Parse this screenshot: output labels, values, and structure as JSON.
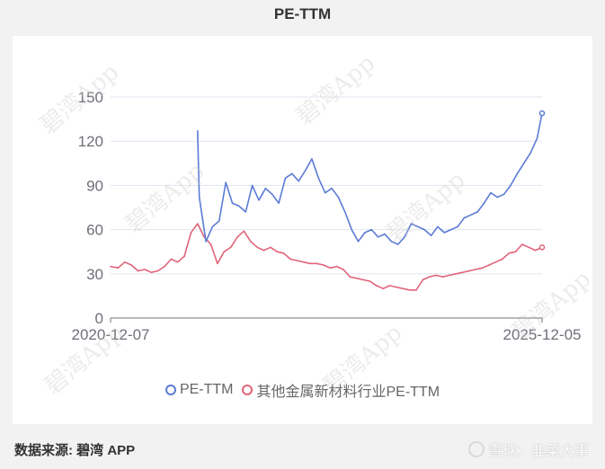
{
  "page": {
    "title": "PE-TTM",
    "source": "数据来源: 碧湾 APP",
    "brand": "雪球：韭菜大事",
    "watermark_text": "碧湾App"
  },
  "chart_data": {
    "type": "line",
    "title": "PE-TTM",
    "xlabel": "",
    "ylabel": "",
    "ylim": [
      0,
      150
    ],
    "yticks": [
      0,
      30,
      60,
      90,
      120,
      150
    ],
    "x_tick_labels": [
      "2020-12-07",
      "2025-12-05"
    ],
    "x_range": [
      "2020-12-07",
      "2025-12-05"
    ],
    "grid": true,
    "legend_position": "bottom",
    "series": [
      {
        "name": "PE-TTM",
        "color": "#5b7bd5",
        "x": [
          "2021-12-10",
          "2021-12-17",
          "2022-01-14",
          "2022-02-11",
          "2022-03-11",
          "2022-04-08",
          "2022-05-06",
          "2022-06-03",
          "2022-07-01",
          "2022-07-29",
          "2022-08-26",
          "2022-09-23",
          "2022-10-21",
          "2022-11-18",
          "2022-12-16",
          "2023-01-13",
          "2023-02-10",
          "2023-03-10",
          "2023-04-07",
          "2023-05-05",
          "2023-06-02",
          "2023-06-30",
          "2023-07-28",
          "2023-08-25",
          "2023-09-22",
          "2023-10-20",
          "2023-11-17",
          "2023-12-15",
          "2024-01-12",
          "2024-02-09",
          "2024-03-08",
          "2024-04-05",
          "2024-05-03",
          "2024-05-31",
          "2024-06-28",
          "2024-07-26",
          "2024-08-23",
          "2024-09-20",
          "2024-10-18",
          "2024-11-15",
          "2024-12-13",
          "2025-01-10",
          "2025-02-07",
          "2025-03-07",
          "2025-04-04",
          "2025-05-02",
          "2025-05-30",
          "2025-06-27",
          "2025-07-25",
          "2025-08-22",
          "2025-09-19",
          "2025-10-17",
          "2025-11-14",
          "2025-12-05"
        ],
        "values": [
          127,
          82,
          52,
          62,
          66,
          92,
          78,
          76,
          72,
          90,
          80,
          88,
          84,
          78,
          95,
          98,
          93,
          100,
          108,
          95,
          85,
          88,
          82,
          72,
          60,
          52,
          58,
          60,
          55,
          57,
          52,
          50,
          55,
          64,
          62,
          60,
          56,
          62,
          58,
          60,
          62,
          68,
          70,
          72,
          78,
          85,
          82,
          84,
          90,
          98,
          105,
          112,
          122,
          139
        ]
      },
      {
        "name": "其他金属新材料行业PE-TTM",
        "color": "#e06479",
        "x": [
          "2020-12-07",
          "2021-01-08",
          "2021-02-05",
          "2021-03-05",
          "2021-04-02",
          "2021-04-30",
          "2021-05-28",
          "2021-06-25",
          "2021-07-23",
          "2021-08-20",
          "2021-09-17",
          "2021-10-15",
          "2021-11-12",
          "2021-12-10",
          "2022-01-07",
          "2022-02-04",
          "2022-03-04",
          "2022-04-01",
          "2022-04-29",
          "2022-05-27",
          "2022-06-24",
          "2022-07-22",
          "2022-08-19",
          "2022-09-16",
          "2022-10-14",
          "2022-11-11",
          "2022-12-09",
          "2023-01-06",
          "2023-02-03",
          "2023-03-03",
          "2023-03-31",
          "2023-04-28",
          "2023-05-26",
          "2023-06-23",
          "2023-07-21",
          "2023-08-18",
          "2023-09-15",
          "2023-10-13",
          "2023-11-10",
          "2023-12-08",
          "2024-01-05",
          "2024-02-02",
          "2024-03-01",
          "2024-03-29",
          "2024-04-26",
          "2024-05-24",
          "2024-06-21",
          "2024-07-19",
          "2024-08-16",
          "2024-09-13",
          "2024-10-11",
          "2024-11-08",
          "2024-12-06",
          "2025-01-03",
          "2025-01-31",
          "2025-02-28",
          "2025-03-28",
          "2025-04-25",
          "2025-05-23",
          "2025-06-20",
          "2025-07-18",
          "2025-08-15",
          "2025-09-12",
          "2025-10-10",
          "2025-11-07",
          "2025-12-05"
        ],
        "values": [
          35,
          34,
          38,
          36,
          32,
          33,
          31,
          32,
          35,
          40,
          38,
          42,
          58,
          64,
          55,
          50,
          37,
          45,
          48,
          55,
          59,
          52,
          48,
          46,
          48,
          45,
          44,
          40,
          39,
          38,
          37,
          37,
          36,
          34,
          35,
          33,
          28,
          27,
          26,
          25,
          22,
          20,
          22,
          21,
          20,
          19,
          19,
          26,
          28,
          29,
          28,
          29,
          30,
          31,
          32,
          33,
          34,
          36,
          38,
          40,
          44,
          45,
          50,
          48,
          46,
          48
        ]
      }
    ]
  }
}
